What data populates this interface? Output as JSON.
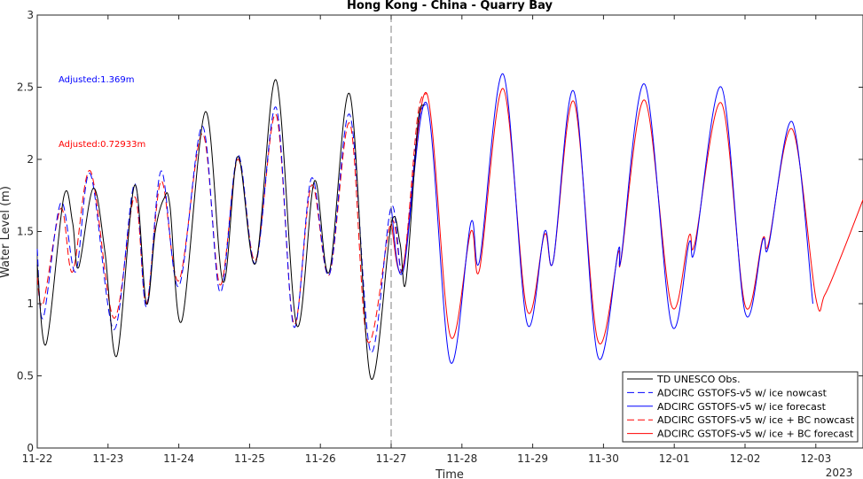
{
  "chart_data": {
    "type": "line",
    "title": "Hong Kong - China - Quarry Bay",
    "xlabel": "Time",
    "ylabel": "Water Level (m)",
    "xlim": [
      "2023-11-22",
      "2023-12-03 16:00"
    ],
    "ylim": [
      0,
      3
    ],
    "yticks": [
      "0",
      "0.5",
      "1",
      "1.5",
      "2",
      "2.5",
      "3"
    ],
    "xticks": [
      "11-22",
      "11-23",
      "11-24",
      "11-25",
      "11-26",
      "11-27",
      "11-28",
      "11-29",
      "11-30",
      "12-01",
      "12-02",
      "12-03"
    ],
    "x_year_label": "2023",
    "forecast_start": "2023-11-27",
    "grid": false,
    "legend_position": "bottom-right",
    "annotations": [
      {
        "text": "Adjusted:1.369m",
        "color": "#0000ff"
      },
      {
        "text": "Adjusted:0.72933m",
        "color": "#ff0000"
      }
    ],
    "series": [
      {
        "name": "TD UNESCO Obs.",
        "color": "#000000",
        "dash": "solid",
        "points": [
          [
            "2023-11-22 00:00",
            1.27
          ],
          [
            "2023-11-22 03:00",
            0.72
          ],
          [
            "2023-11-22 09:00",
            1.74
          ],
          [
            "2023-11-22 12:00",
            1.56
          ],
          [
            "2023-11-22 14:00",
            1.25
          ],
          [
            "2023-11-22 19:00",
            1.8
          ],
          [
            "2023-11-22 23:00",
            1.35
          ],
          [
            "2023-11-23 03:00",
            0.64
          ],
          [
            "2023-11-23 09:00",
            1.82
          ],
          [
            "2023-11-23 13:00",
            1.0
          ],
          [
            "2023-11-23 16:00",
            1.5
          ],
          [
            "2023-11-23 19:00",
            1.73
          ],
          [
            "2023-11-23 21:00",
            1.68
          ],
          [
            "2023-11-24 01:00",
            0.88
          ],
          [
            "2023-11-24 09:00",
            2.33
          ],
          [
            "2023-11-24 15:00",
            1.15
          ],
          [
            "2023-11-24 20:00",
            2.02
          ],
          [
            "2023-11-25 02:00",
            1.28
          ],
          [
            "2023-11-25 09:00",
            2.55
          ],
          [
            "2023-11-25 16:00",
            0.85
          ],
          [
            "2023-11-25 22:00",
            1.85
          ],
          [
            "2023-11-26 03:00",
            1.22
          ],
          [
            "2023-11-26 10:00",
            2.45
          ],
          [
            "2023-11-26 17:00",
            0.49
          ],
          [
            "2023-11-27 00:00",
            1.55
          ],
          [
            "2023-11-27 03:00",
            1.42
          ],
          [
            "2023-11-27 05:00",
            1.15
          ],
          [
            "2023-11-27 09:00",
            2.23
          ],
          [
            "2023-11-27 11:00",
            2.38
          ]
        ]
      },
      {
        "name": "ADCIRC GSTOFS-v5 w/ ice nowcast",
        "color": "#0000ff",
        "dash": "dashed",
        "points": [
          [
            "2023-11-22 00:00",
            1.38
          ],
          [
            "2023-11-22 02:00",
            0.9
          ],
          [
            "2023-11-22 08:00",
            1.7
          ],
          [
            "2023-11-22 13:00",
            1.22
          ],
          [
            "2023-11-22 18:00",
            1.9
          ],
          [
            "2023-11-23 02:00",
            0.82
          ],
          [
            "2023-11-23 09:00",
            1.83
          ],
          [
            "2023-11-23 13:00",
            0.98
          ],
          [
            "2023-11-23 18:00",
            1.92
          ],
          [
            "2023-11-24 00:00",
            1.12
          ],
          [
            "2023-11-24 08:00",
            2.23
          ],
          [
            "2023-11-24 14:00",
            1.08
          ],
          [
            "2023-11-24 20:00",
            2.03
          ],
          [
            "2023-11-25 02:00",
            1.28
          ],
          [
            "2023-11-25 09:00",
            2.36
          ],
          [
            "2023-11-25 15:00",
            0.84
          ],
          [
            "2023-11-25 21:00",
            1.87
          ],
          [
            "2023-11-26 03:00",
            1.2
          ],
          [
            "2023-11-26 10:00",
            2.31
          ],
          [
            "2023-11-26 17:00",
            0.67
          ],
          [
            "2023-11-27 00:00",
            1.67
          ],
          [
            "2023-11-27 04:00",
            1.22
          ],
          [
            "2023-11-27 09:00",
            2.22
          ],
          [
            "2023-11-27 12:00",
            2.39
          ]
        ]
      },
      {
        "name": "ADCIRC GSTOFS-v5 w/ ice forecast",
        "color": "#0000ff",
        "dash": "solid",
        "points": [
          [
            "2023-11-27 00:00",
            1.67
          ],
          [
            "2023-11-27 04:00",
            1.22
          ],
          [
            "2023-11-27 12:00",
            2.39
          ],
          [
            "2023-11-27 20:00",
            0.6
          ],
          [
            "2023-11-28 03:00",
            1.56
          ],
          [
            "2023-11-28 06:00",
            1.3
          ],
          [
            "2023-11-28 14:00",
            2.59
          ],
          [
            "2023-11-28 22:00",
            0.87
          ],
          [
            "2023-11-29 04:00",
            1.5
          ],
          [
            "2023-11-29 07:00",
            1.3
          ],
          [
            "2023-11-29 14:00",
            2.47
          ],
          [
            "2023-11-29 22:00",
            0.64
          ],
          [
            "2023-11-30 05:00",
            1.37
          ],
          [
            "2023-11-30 06:00",
            1.32
          ],
          [
            "2023-11-30 14:00",
            2.52
          ],
          [
            "2023-11-30 23:00",
            0.86
          ],
          [
            "2023-12-01 05:00",
            1.42
          ],
          [
            "2023-12-01 07:00",
            1.38
          ],
          [
            "2023-12-01 16:00",
            2.5
          ],
          [
            "2023-12-02 00:00",
            0.94
          ],
          [
            "2023-12-02 06:00",
            1.44
          ],
          [
            "2023-12-02 08:00",
            1.4
          ],
          [
            "2023-12-02 16:00",
            2.26
          ],
          [
            "2023-12-02 23:00",
            1.0
          ]
        ]
      },
      {
        "name": "ADCIRC GSTOFS-v5 w/ ice + BC nowcast",
        "color": "#ff0000",
        "dash": "dashed",
        "points": [
          [
            "2023-11-22 00:00",
            1.18
          ],
          [
            "2023-11-22 02:00",
            1.0
          ],
          [
            "2023-11-22 08:00",
            1.66
          ],
          [
            "2023-11-22 12:00",
            1.22
          ],
          [
            "2023-11-22 18:00",
            1.92
          ],
          [
            "2023-11-23 02:00",
            0.9
          ],
          [
            "2023-11-23 09:00",
            1.74
          ],
          [
            "2023-11-23 13:00",
            1.0
          ],
          [
            "2023-11-23 18:00",
            1.85
          ],
          [
            "2023-11-24 00:00",
            1.16
          ],
          [
            "2023-11-24 08:00",
            2.18
          ],
          [
            "2023-11-24 14:00",
            1.13
          ],
          [
            "2023-11-24 20:00",
            2.0
          ],
          [
            "2023-11-25 02:00",
            1.3
          ],
          [
            "2023-11-25 09:00",
            2.31
          ],
          [
            "2023-11-25 15:00",
            0.86
          ],
          [
            "2023-11-25 21:00",
            1.82
          ],
          [
            "2023-11-26 03:00",
            1.2
          ],
          [
            "2023-11-26 10:00",
            2.25
          ],
          [
            "2023-11-26 16:00",
            0.74
          ],
          [
            "2023-11-27 00:00",
            1.57
          ],
          [
            "2023-11-27 04:00",
            1.25
          ],
          [
            "2023-11-27 09:00",
            2.3
          ],
          [
            "2023-11-27 12:00",
            2.46
          ]
        ]
      },
      {
        "name": "ADCIRC GSTOFS-v5 w/ ice + BC forecast",
        "color": "#ff0000",
        "dash": "solid",
        "points": [
          [
            "2023-11-27 00:00",
            1.57
          ],
          [
            "2023-11-27 04:00",
            1.25
          ],
          [
            "2023-11-27 12:00",
            2.46
          ],
          [
            "2023-11-27 20:00",
            0.78
          ],
          [
            "2023-11-28 03:00",
            1.5
          ],
          [
            "2023-11-28 06:00",
            1.24
          ],
          [
            "2023-11-28 14:00",
            2.49
          ],
          [
            "2023-11-28 22:00",
            0.96
          ],
          [
            "2023-11-29 04:00",
            1.48
          ],
          [
            "2023-11-29 07:00",
            1.3
          ],
          [
            "2023-11-29 14:00",
            2.4
          ],
          [
            "2023-11-29 22:00",
            0.75
          ],
          [
            "2023-11-30 05:00",
            1.35
          ],
          [
            "2023-11-30 06:00",
            1.31
          ],
          [
            "2023-11-30 14:00",
            2.41
          ],
          [
            "2023-11-30 23:00",
            0.99
          ],
          [
            "2023-12-01 05:00",
            1.47
          ],
          [
            "2023-12-01 07:00",
            1.42
          ],
          [
            "2023-12-01 16:00",
            2.39
          ],
          [
            "2023-12-02 00:00",
            0.99
          ],
          [
            "2023-12-02 06:00",
            1.45
          ],
          [
            "2023-12-02 08:00",
            1.42
          ],
          [
            "2023-12-02 16:00",
            2.21
          ],
          [
            "2023-12-03 00:00",
            1.04
          ],
          [
            "2023-12-03 03:00",
            1.06
          ],
          [
            "2023-12-03 09:00",
            1.35
          ],
          [
            "2023-12-03 16:00",
            1.72
          ]
        ]
      }
    ]
  }
}
